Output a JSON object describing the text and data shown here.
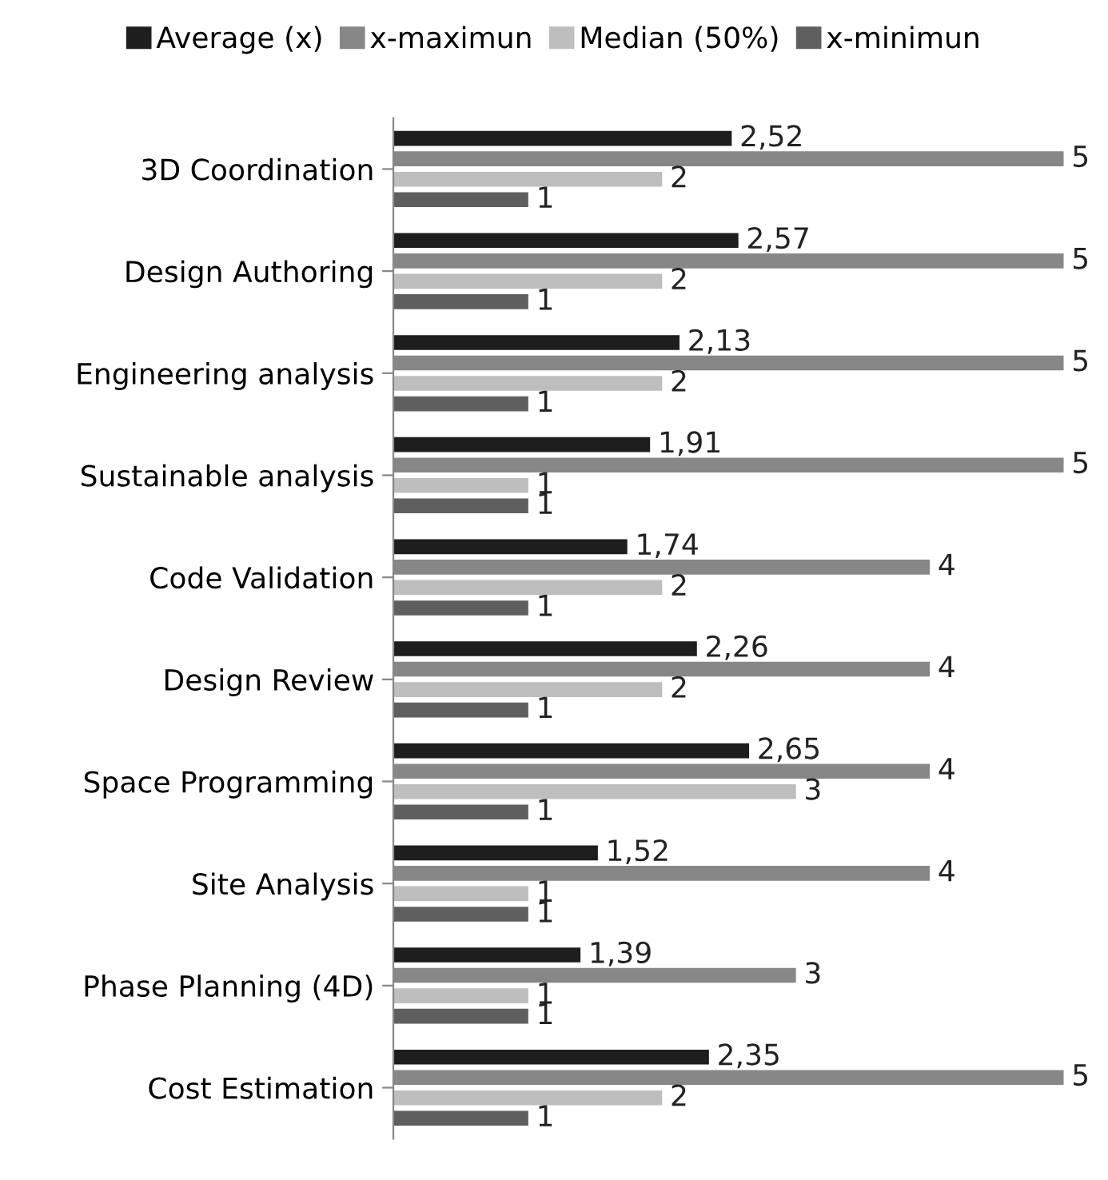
{
  "chart_data": {
    "type": "bar",
    "orientation": "horizontal",
    "legend": "top",
    "grid": false,
    "categories": [
      "3D Coordination",
      "Design Authoring",
      "Engineering analysis",
      "Sustainable analysis",
      "Code Validation",
      "Design Review",
      "Space Programming",
      "Site Analysis",
      "Phase Planning (4D)",
      "Cost Estimation"
    ],
    "series": [
      {
        "name": "Average (x)",
        "color": "#1e1e1e",
        "values": [
          2.52,
          2.57,
          2.13,
          1.91,
          1.74,
          2.26,
          2.65,
          1.52,
          1.39,
          2.35
        ],
        "value_labels": [
          "2,52",
          "2,57",
          "2,13",
          "1,91",
          "1,74",
          "2,26",
          "2,65",
          "1,52",
          "1,39",
          "2,35"
        ]
      },
      {
        "name": "x-maximun",
        "color": "#878787",
        "values": [
          5,
          5,
          5,
          5,
          4,
          4,
          4,
          4,
          3,
          5
        ],
        "value_labels": [
          "5",
          "5",
          "5",
          "5",
          "4",
          "4",
          "4",
          "4",
          "3",
          "5"
        ]
      },
      {
        "name": "Median (50%)",
        "color": "#bebebe",
        "values": [
          2,
          2,
          2,
          1,
          2,
          2,
          3,
          1,
          1,
          2
        ],
        "value_labels": [
          "2",
          "2",
          "2",
          "1",
          "2",
          "2",
          "3",
          "1",
          "1",
          "2"
        ]
      },
      {
        "name": "x-minimun",
        "color": "#5f5f5f",
        "values": [
          1,
          1,
          1,
          1,
          1,
          1,
          1,
          1,
          1,
          1
        ],
        "value_labels": [
          "1",
          "1",
          "1",
          "1",
          "1",
          "1",
          "1",
          "1",
          "1",
          "1"
        ]
      }
    ]
  }
}
